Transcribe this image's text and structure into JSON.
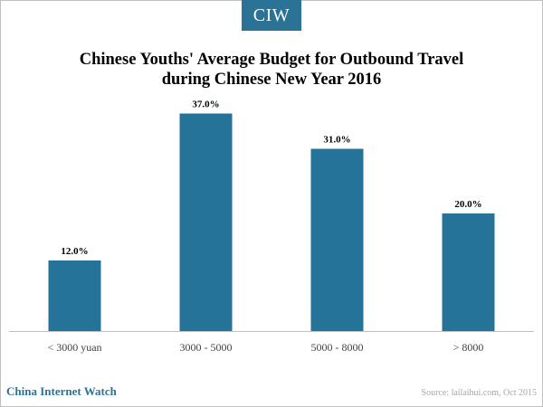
{
  "brand": {
    "logo_text": "CIW",
    "footer_name": "China Internet Watch"
  },
  "source_note": "Source: lailaihui.com,   Oct 2015",
  "colors": {
    "bar": "#26739a",
    "brand": "#2b7396",
    "axis": "#bfbfbf"
  },
  "chart_data": {
    "type": "bar",
    "title_lines": [
      "Chinese Youths' Average Budget for Outbound Travel",
      "during Chinese New Year 2016"
    ],
    "categories": [
      "< 3000 yuan",
      "3000 - 5000",
      "5000 - 8000",
      "> 8000"
    ],
    "values": [
      12.0,
      37.0,
      31.0,
      20.0
    ],
    "value_labels": [
      "12.0%",
      "37.0%",
      "31.0%",
      "20.0%"
    ],
    "unit": "%",
    "ylim": [
      0,
      40
    ],
    "grid": false,
    "legend": "none"
  }
}
